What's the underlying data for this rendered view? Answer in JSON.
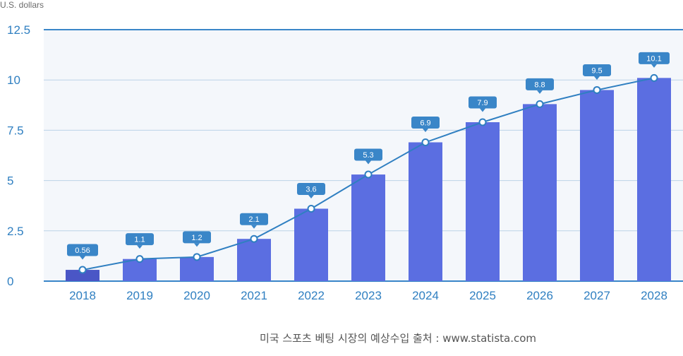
{
  "chart_data": {
    "type": "bar",
    "ylabel": "U.S. dollars",
    "categories": [
      "2018",
      "2019",
      "2020",
      "2021",
      "2022",
      "2023",
      "2024",
      "2025",
      "2026",
      "2027",
      "2028"
    ],
    "values": [
      0.56,
      1.1,
      1.2,
      2.1,
      3.6,
      5.3,
      6.9,
      7.9,
      8.8,
      9.5,
      10.1
    ],
    "value_labels": [
      "0.56",
      "1.1",
      "1.2",
      "2.1",
      "3.6",
      "5.3",
      "6.9",
      "7.9",
      "8.8",
      "9.5",
      "10.1"
    ],
    "overlay": "line",
    "ylim": [
      0,
      12.5
    ],
    "yticks": [
      0,
      2.5,
      5,
      7.5,
      10,
      12.5
    ],
    "ytick_labels": [
      "0",
      "2.5",
      "5",
      "7.5",
      "10",
      "12.5"
    ],
    "grid": true,
    "colors": {
      "bar": "#5b6ee1",
      "bar_first": "#4a56c6",
      "line": "#2f7fc1",
      "label_box": "#3a86c8",
      "axis_text": "#2f7fc1",
      "plot_bg": "#f4f7fb"
    }
  },
  "source_text": "미국 스포츠 베팅 시장의 예상수입 출처 : www.statista.com"
}
